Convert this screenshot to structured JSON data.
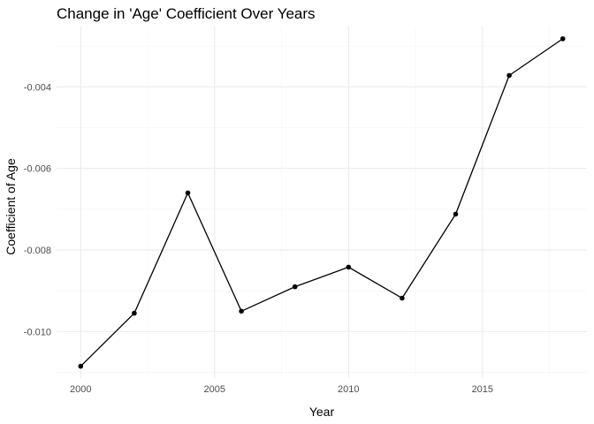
{
  "chart_data": {
    "type": "line",
    "title": "Change in 'Age' Coefficient Over Years",
    "xlabel": "Year",
    "ylabel": "Coefficient of Age",
    "x": [
      2000,
      2002,
      2004,
      2006,
      2008,
      2010,
      2012,
      2014,
      2016,
      2018
    ],
    "series": [
      {
        "values": [
          -0.01085,
          -0.00955,
          -0.0066,
          -0.0095,
          -0.0089,
          -0.00842,
          -0.00918,
          -0.00712,
          -0.00372,
          -0.00282
        ]
      }
    ],
    "xlim": [
      1999.1,
      2018.9
    ],
    "ylim": [
      -0.01114,
      -0.00252
    ],
    "x_ticks": [
      2000,
      2005,
      2010,
      2015
    ],
    "x_tick_labels": [
      "2000",
      "2005",
      "2010",
      "2015"
    ],
    "y_ticks": [
      -0.01,
      -0.008,
      -0.006,
      -0.004
    ],
    "y_tick_labels": [
      "-0.010",
      "-0.008",
      "-0.006",
      "-0.004"
    ],
    "grid": true,
    "theme": "minimal",
    "line_color": "#000000",
    "grid_color": "#ebebeb"
  }
}
